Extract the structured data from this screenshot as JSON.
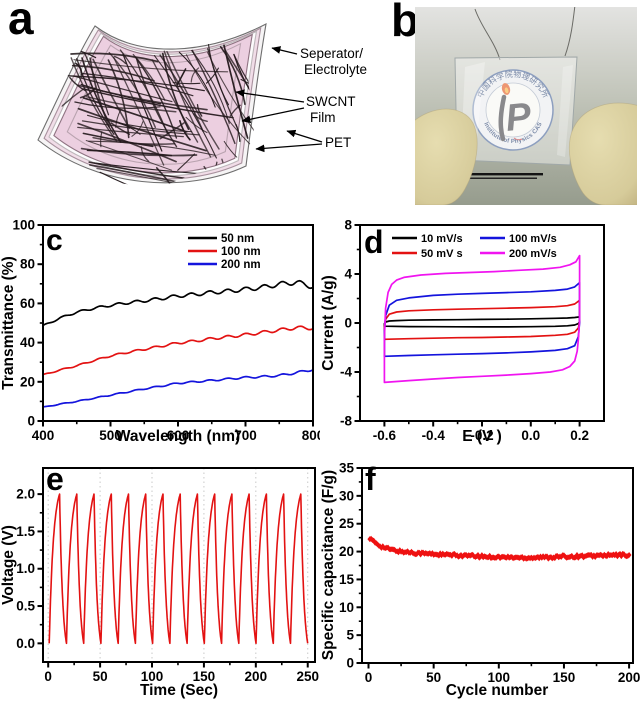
{
  "figure": {
    "panels": {
      "a": "a",
      "b": "b"
    }
  },
  "panel_a": {
    "labels": {
      "separator_lines": [
        "Seperator/",
        "Electrolyte"
      ],
      "swcnt_lines": [
        "SWCNT",
        "Film"
      ],
      "pet": "PET"
    },
    "colors": {
      "electrolyte_pink": "#eccfe0",
      "strip_pink": "#f1dde8",
      "mesh_black": "#241a1d",
      "outline_gray": "#6e6e6e"
    }
  },
  "panel_b": {
    "ring_top_text": "中国科学院物理研究所",
    "ring_bottom_text": "Institute of Physics CAS",
    "monogram": "P",
    "colors": {
      "ring_blue": "#3c5a92",
      "flame_orange": "#e04a0e",
      "glove_tan": "#d6cb9a",
      "background_gray": "#c2c5ba"
    }
  },
  "chart_data": [
    {
      "id": "c",
      "panel_letter": "c",
      "type": "line",
      "xlabel": "Wavelength (nm)",
      "ylabel": "Transmittance (%)",
      "xlim": [
        400,
        800
      ],
      "ylim": [
        0,
        100
      ],
      "xticks": [
        400,
        500,
        600,
        700,
        800
      ],
      "xtick_labels": [
        "400",
        "500",
        "600",
        "700",
        "800"
      ],
      "yticks": [
        0,
        20,
        40,
        60,
        80,
        100
      ],
      "ytick_labels": [
        "0",
        "20",
        "40",
        "60",
        "80",
        "100"
      ],
      "legend_position": "top-right",
      "grid": false,
      "series": [
        {
          "name": "50 nm",
          "color": "#000000",
          "ripple_amp": 1.25,
          "ripple_period": 27,
          "points": [
            [
              400,
              48.5
            ],
            [
              425,
              52.5
            ],
            [
              450,
              55.5
            ],
            [
              475,
              57.5
            ],
            [
              500,
              59
            ],
            [
              525,
              60.3
            ],
            [
              550,
              61.3
            ],
            [
              575,
              62.5
            ],
            [
              600,
              63.8
            ],
            [
              625,
              64.6
            ],
            [
              650,
              65.6
            ],
            [
              675,
              66.3
            ],
            [
              700,
              67.2
            ],
            [
              725,
              68.2
            ],
            [
              750,
              69.8
            ],
            [
              775,
              70.8
            ],
            [
              800,
              68.6
            ]
          ]
        },
        {
          "name": "100 nm",
          "color": "#e31212",
          "ripple_amp": 0.85,
          "ripple_period": 27,
          "points": [
            [
              400,
              23.5
            ],
            [
              425,
              26
            ],
            [
              450,
              28.2
            ],
            [
              475,
              30.8
            ],
            [
              500,
              33.2
            ],
            [
              525,
              35
            ],
            [
              550,
              36.6
            ],
            [
              575,
              38.2
            ],
            [
              600,
              39.8
            ],
            [
              625,
              40.8
            ],
            [
              650,
              42
            ],
            [
              675,
              43
            ],
            [
              700,
              44
            ],
            [
              725,
              45.2
            ],
            [
              750,
              46.4
            ],
            [
              775,
              47.6
            ],
            [
              800,
              47.4
            ]
          ]
        },
        {
          "name": "200 nm",
          "color": "#1414dd",
          "ripple_amp": 0.55,
          "ripple_period": 27,
          "points": [
            [
              400,
              7
            ],
            [
              425,
              8.6
            ],
            [
              450,
              10
            ],
            [
              475,
              11.6
            ],
            [
              500,
              13.2
            ],
            [
              525,
              14.8
            ],
            [
              550,
              16.4
            ],
            [
              575,
              17.8
            ],
            [
              600,
              19.3
            ],
            [
              625,
              20
            ],
            [
              650,
              20.7
            ],
            [
              675,
              21.5
            ],
            [
              700,
              22.2
            ],
            [
              725,
              22.6
            ],
            [
              750,
              23.2
            ],
            [
              775,
              24.6
            ],
            [
              800,
              26.3
            ]
          ]
        }
      ]
    },
    {
      "id": "d",
      "panel_letter": "d",
      "type": "cv",
      "xlabel": "E (V )",
      "ylabel": "Current (A/g)",
      "xlim": [
        -0.7,
        0.3
      ],
      "ylim": [
        -8,
        8
      ],
      "xticks": [
        -0.6,
        -0.4,
        -0.2,
        0,
        0.2
      ],
      "xtick_labels": [
        "-0.6",
        "-0.4",
        "-0.2",
        "0.0",
        "0.2"
      ],
      "yticks": [
        -8,
        -4,
        0,
        4,
        8
      ],
      "ytick_labels": [
        "-8",
        "-4",
        "0",
        "4",
        "8"
      ],
      "legend_position": "top-two-column",
      "grid": false,
      "series": [
        {
          "name": "10 mV/s",
          "color": "#000000",
          "top": [
            [
              -0.6,
              -0.05
            ],
            [
              -0.595,
              0.08
            ],
            [
              -0.58,
              0.16
            ],
            [
              -0.55,
              0.2
            ],
            [
              -0.5,
              0.23
            ],
            [
              -0.4,
              0.25
            ],
            [
              -0.3,
              0.27
            ],
            [
              -0.2,
              0.29
            ],
            [
              -0.1,
              0.31
            ],
            [
              0,
              0.34
            ],
            [
              0.1,
              0.38
            ],
            [
              0.15,
              0.41
            ],
            [
              0.18,
              0.45
            ],
            [
              0.2,
              0.5
            ]
          ],
          "bottom": [
            [
              -0.6,
              -0.26
            ],
            [
              -0.5,
              -0.29
            ],
            [
              -0.4,
              -0.3
            ],
            [
              -0.3,
              -0.31
            ],
            [
              -0.2,
              -0.32
            ],
            [
              -0.1,
              -0.32
            ],
            [
              0,
              -0.3
            ],
            [
              0.1,
              -0.27
            ],
            [
              0.15,
              -0.23
            ],
            [
              0.18,
              -0.16
            ],
            [
              0.195,
              -0.05
            ],
            [
              0.2,
              0.12
            ]
          ]
        },
        {
          "name": "50 mV s",
          "color": "#e31212",
          "top": [
            [
              -0.6,
              -0.35
            ],
            [
              -0.595,
              0.3
            ],
            [
              -0.58,
              0.72
            ],
            [
              -0.55,
              0.9
            ],
            [
              -0.5,
              1.0
            ],
            [
              -0.4,
              1.08
            ],
            [
              -0.3,
              1.13
            ],
            [
              -0.2,
              1.17
            ],
            [
              -0.1,
              1.21
            ],
            [
              0,
              1.26
            ],
            [
              0.1,
              1.33
            ],
            [
              0.15,
              1.41
            ],
            [
              0.18,
              1.55
            ],
            [
              0.2,
              1.85
            ]
          ],
          "bottom": [
            [
              -0.6,
              -1.33
            ],
            [
              -0.5,
              -1.28
            ],
            [
              -0.4,
              -1.24
            ],
            [
              -0.3,
              -1.2
            ],
            [
              -0.2,
              -1.18
            ],
            [
              -0.1,
              -1.14
            ],
            [
              0,
              -1.1
            ],
            [
              0.1,
              -1.0
            ],
            [
              0.15,
              -0.92
            ],
            [
              0.18,
              -0.75
            ],
            [
              0.195,
              -0.4
            ],
            [
              0.2,
              0.15
            ]
          ]
        },
        {
          "name": "100 mV/s",
          "color": "#1414dd",
          "top": [
            [
              -0.6,
              -0.7
            ],
            [
              -0.595,
              0.6
            ],
            [
              -0.58,
              1.45
            ],
            [
              -0.55,
              1.85
            ],
            [
              -0.5,
              2.05
            ],
            [
              -0.4,
              2.25
            ],
            [
              -0.3,
              2.35
            ],
            [
              -0.2,
              2.42
            ],
            [
              -0.1,
              2.48
            ],
            [
              0,
              2.55
            ],
            [
              0.1,
              2.66
            ],
            [
              0.15,
              2.77
            ],
            [
              0.18,
              2.95
            ],
            [
              0.2,
              3.3
            ]
          ],
          "bottom": [
            [
              -0.6,
              -2.72
            ],
            [
              -0.5,
              -2.65
            ],
            [
              -0.4,
              -2.6
            ],
            [
              -0.3,
              -2.55
            ],
            [
              -0.2,
              -2.5
            ],
            [
              -0.1,
              -2.44
            ],
            [
              0,
              -2.36
            ],
            [
              0.1,
              -2.24
            ],
            [
              0.15,
              -2.1
            ],
            [
              0.18,
              -1.85
            ],
            [
              0.195,
              -1.1
            ],
            [
              0.2,
              0.05
            ]
          ]
        },
        {
          "name": "200 mV/s",
          "color": "#f014f0",
          "top": [
            [
              -0.6,
              -1.2
            ],
            [
              -0.595,
              1.2
            ],
            [
              -0.585,
              2.5
            ],
            [
              -0.57,
              3.15
            ],
            [
              -0.55,
              3.5
            ],
            [
              -0.52,
              3.72
            ],
            [
              -0.45,
              3.92
            ],
            [
              -0.35,
              4.05
            ],
            [
              -0.25,
              4.12
            ],
            [
              -0.15,
              4.2
            ],
            [
              -0.05,
              4.3
            ],
            [
              0.05,
              4.4
            ],
            [
              0.12,
              4.55
            ],
            [
              0.16,
              4.75
            ],
            [
              0.185,
              5.0
            ],
            [
              0.2,
              5.5
            ]
          ],
          "bottom": [
            [
              -0.6,
              -4.85
            ],
            [
              -0.5,
              -4.7
            ],
            [
              -0.4,
              -4.57
            ],
            [
              -0.3,
              -4.45
            ],
            [
              -0.2,
              -4.35
            ],
            [
              -0.1,
              -4.25
            ],
            [
              0,
              -4.13
            ],
            [
              0.08,
              -4.0
            ],
            [
              0.13,
              -3.82
            ],
            [
              0.16,
              -3.55
            ],
            [
              0.18,
              -3.1
            ],
            [
              0.19,
              -2.3
            ],
            [
              0.195,
              -1.3
            ],
            [
              0.2,
              0.3
            ]
          ]
        }
      ]
    },
    {
      "id": "e",
      "panel_letter": "e",
      "type": "gcd",
      "xlabel": "Time (Sec)",
      "ylabel": "Voltage (V)",
      "xlim": [
        -5,
        257
      ],
      "ylim": [
        -0.25,
        2.35
      ],
      "xticks": [
        0,
        50,
        100,
        150,
        200,
        250
      ],
      "xtick_labels": [
        "0",
        "50",
        "100",
        "150",
        "200",
        "250"
      ],
      "yticks": [
        0,
        0.5,
        1,
        1.5,
        2
      ],
      "ytick_labels": [
        "0.0",
        "0.5",
        "1.0",
        "1.5",
        "2.0"
      ],
      "grid": true,
      "color": "#e31212",
      "cycles": 15,
      "t_start": 1,
      "t_end": 250,
      "v_max": 2.0,
      "v_min": 0.0,
      "charge_fraction": 0.6
    },
    {
      "id": "f",
      "panel_letter": "f",
      "type": "scatter",
      "xlabel": "Cycle number",
      "ylabel": "Specific capacitance (F/g)",
      "xlim": [
        -5,
        203
      ],
      "ylim": [
        0,
        35
      ],
      "xticks": [
        0,
        50,
        100,
        150,
        200
      ],
      "xtick_labels": [
        "0",
        "50",
        "100",
        "150",
        "200"
      ],
      "yticks": [
        0,
        5,
        10,
        15,
        20,
        25,
        30,
        35
      ],
      "ytick_labels": [
        "0",
        "5",
        "10",
        "15",
        "20",
        "25",
        "30",
        "35"
      ],
      "color": "#ee1111",
      "marker": "diamond",
      "n_points": 200,
      "grid": false,
      "capacitance_vs_cycle": [
        [
          0,
          22.5
        ],
        [
          5,
          21.6
        ],
        [
          10,
          20.9
        ],
        [
          15,
          20.5
        ],
        [
          20,
          20.2
        ],
        [
          25,
          20.0
        ],
        [
          30,
          19.9
        ],
        [
          40,
          19.7
        ],
        [
          50,
          19.55
        ],
        [
          60,
          19.4
        ],
        [
          70,
          19.3
        ],
        [
          80,
          19.2
        ],
        [
          90,
          19.1
        ],
        [
          100,
          19.0
        ],
        [
          110,
          18.95
        ],
        [
          120,
          18.9
        ],
        [
          130,
          18.95
        ],
        [
          140,
          19.0
        ],
        [
          150,
          19.1
        ],
        [
          160,
          19.15
        ],
        [
          170,
          19.2
        ],
        [
          180,
          19.3
        ],
        [
          190,
          19.35
        ],
        [
          200,
          19.4
        ]
      ]
    }
  ]
}
